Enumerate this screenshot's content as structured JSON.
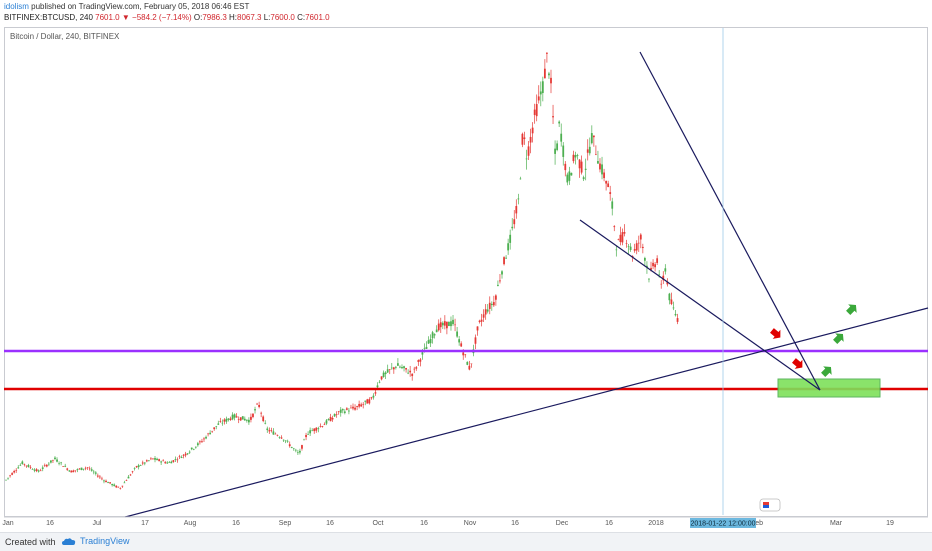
{
  "header": {
    "author": "idolism",
    "published": " published on TradingView.com, February 05, 2018 06:46 EST",
    "symbol": "BITFINEX:BTCUSD, 240",
    "last": "7601.0",
    "change": "−584.2 (−7.14%)",
    "o_label": "O:",
    "o_value": "7986.3",
    "h_label": "H:",
    "h_value": "8067.3",
    "l_label": "L:",
    "l_value": "7600.0",
    "c_label": "C:",
    "c_value": "7601.0"
  },
  "chart_title": "Bitcoin / Dollar, 240, BITFINEX",
  "crosshair_date": "2018-01-22 12:00:00",
  "footer": {
    "created": "Created with",
    "brand": "TradingView"
  },
  "colors": {
    "bull": "#4caf50",
    "bear": "#e53935",
    "trendline": "#1a1a5e",
    "purple_line": "#9b30ff",
    "red_line": "#e00000",
    "target_zone": "#7ee05a",
    "arrow_red": "#e00000",
    "arrow_green": "#3aa83a"
  },
  "icons": {
    "down_arrow": "red-down-arrow-icon",
    "up_arrow": "green-up-arrow-icon",
    "logo": "tradingview-cloud-icon"
  },
  "chart_data": {
    "type": "line",
    "title": "Bitcoin / Dollar, 240, BITFINEX",
    "x_tick_labels": [
      "Jan",
      "16",
      "Jul",
      "17",
      "Aug",
      "16",
      "Sep",
      "16",
      "Oct",
      "16",
      "Nov",
      "16",
      "Dec",
      "16",
      "2018",
      "16",
      "Feb",
      "Mar",
      "19"
    ],
    "price_path": [
      [
        0.0,
        0.0
      ],
      [
        0.02,
        0.04
      ],
      [
        0.04,
        0.02
      ],
      [
        0.06,
        0.05
      ],
      [
        0.08,
        0.02
      ],
      [
        0.1,
        0.03
      ],
      [
        0.12,
        0.0
      ],
      [
        0.14,
        -0.02
      ],
      [
        0.16,
        0.03
      ],
      [
        0.18,
        0.05
      ],
      [
        0.2,
        0.04
      ],
      [
        0.22,
        0.06
      ],
      [
        0.24,
        0.09
      ],
      [
        0.26,
        0.13
      ],
      [
        0.28,
        0.15
      ],
      [
        0.3,
        0.14
      ],
      [
        0.31,
        0.18
      ],
      [
        0.32,
        0.12
      ],
      [
        0.34,
        0.1
      ],
      [
        0.36,
        0.06
      ],
      [
        0.37,
        0.11
      ],
      [
        0.39,
        0.13
      ],
      [
        0.41,
        0.16
      ],
      [
        0.43,
        0.17
      ],
      [
        0.45,
        0.19
      ],
      [
        0.46,
        0.24
      ],
      [
        0.48,
        0.27
      ],
      [
        0.5,
        0.25
      ],
      [
        0.51,
        0.29
      ],
      [
        0.53,
        0.36
      ],
      [
        0.55,
        0.37
      ],
      [
        0.56,
        0.31
      ],
      [
        0.57,
        0.26
      ],
      [
        0.58,
        0.36
      ],
      [
        0.59,
        0.4
      ],
      [
        0.6,
        0.42
      ],
      [
        0.61,
        0.5
      ],
      [
        0.62,
        0.57
      ],
      [
        0.63,
        0.66
      ],
      [
        0.635,
        0.82
      ],
      [
        0.64,
        0.76
      ],
      [
        0.65,
        0.86
      ],
      [
        0.66,
        0.93
      ],
      [
        0.665,
        1.0
      ],
      [
        0.67,
        0.92
      ],
      [
        0.675,
        0.75
      ],
      [
        0.68,
        0.84
      ],
      [
        0.69,
        0.7
      ],
      [
        0.7,
        0.77
      ],
      [
        0.71,
        0.72
      ],
      [
        0.72,
        0.81
      ],
      [
        0.73,
        0.74
      ],
      [
        0.74,
        0.69
      ],
      [
        0.745,
        0.64
      ],
      [
        0.75,
        0.55
      ],
      [
        0.76,
        0.58
      ],
      [
        0.77,
        0.53
      ],
      [
        0.78,
        0.57
      ],
      [
        0.79,
        0.48
      ],
      [
        0.8,
        0.52
      ],
      [
        0.805,
        0.45
      ],
      [
        0.81,
        0.5
      ],
      [
        0.815,
        0.43
      ],
      [
        0.82,
        0.4
      ],
      [
        0.825,
        0.38
      ]
    ],
    "annotations": [
      "descending resistance trendline",
      "lower wedge trendline",
      "long-term ascending support trendline",
      "purple horizontal support",
      "red horizontal support",
      "green target zone",
      "red down arrows",
      "green up arrows"
    ]
  }
}
